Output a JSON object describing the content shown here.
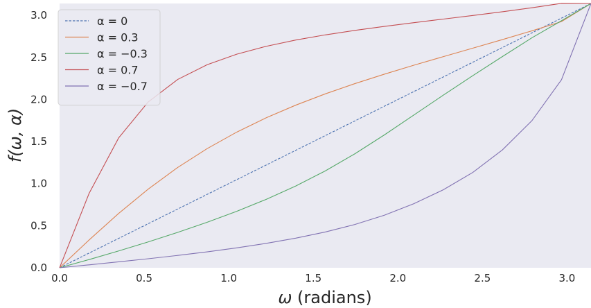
{
  "chart_data": {
    "type": "line",
    "xlabel": {
      "symbol": "ω",
      "unit": " (radians)"
    },
    "ylabel": "f(ω, α)",
    "xlim": [
      0,
      3.14159
    ],
    "ylim": [
      0,
      3.14159
    ],
    "x_ticks": [
      0.0,
      0.5,
      1.0,
      1.5,
      2.0,
      2.5,
      3.0
    ],
    "x_tick_labels": [
      "0.0",
      "0.5",
      "1.0",
      "1.5",
      "2.0",
      "2.5",
      "3.0"
    ],
    "y_ticks": [
      0.0,
      0.5,
      1.0,
      1.5,
      2.0,
      2.5,
      3.0
    ],
    "y_tick_labels": [
      "0.0",
      "0.5",
      "1.0",
      "1.5",
      "2.0",
      "2.5",
      "3.0"
    ],
    "grid": false,
    "legend_position": "top-left",
    "x": [
      0.0,
      0.1745,
      0.3491,
      0.5236,
      0.6981,
      0.8727,
      1.0472,
      1.2217,
      1.3963,
      1.5708,
      1.7453,
      1.9199,
      2.0944,
      2.2689,
      2.4435,
      2.618,
      2.7925,
      2.9671,
      3.1416
    ],
    "series": [
      {
        "name": "α = 0",
        "legend_label": "α = 0",
        "color": "#4c72b0",
        "dashed": true,
        "values": [
          0.0,
          0.1745,
          0.3491,
          0.5236,
          0.6981,
          0.8727,
          1.0472,
          1.2217,
          1.3963,
          1.5708,
          1.7453,
          1.9199,
          2.0944,
          2.2689,
          2.4435,
          2.618,
          2.7925,
          2.9671,
          3.1416
        ]
      },
      {
        "name": "α = 0.3",
        "legend_label": "α = 0.3",
        "color": "#dd8452",
        "dashed": false,
        "values": [
          0.0,
          0.3302,
          0.6455,
          0.9347,
          1.1921,
          1.4168,
          1.6124,
          1.7829,
          1.933,
          2.067,
          2.1887,
          2.3012,
          2.4075,
          2.51,
          2.6109,
          2.7123,
          2.8165,
          2.9258,
          3.1416
        ]
      },
      {
        "name": "α = −0.3",
        "legend_label": "α = −0.3",
        "color": "#55a868",
        "dashed": false,
        "values": [
          0.0,
          0.0975,
          0.1997,
          0.3071,
          0.4204,
          0.5411,
          0.6711,
          0.8135,
          0.9723,
          1.1514,
          1.3545,
          1.5791,
          1.8156,
          2.0523,
          2.2843,
          2.5109,
          2.7339,
          2.9368,
          3.1416
        ]
      },
      {
        "name": "α = 0.7",
        "legend_label": "α = 0.7",
        "color": "#c44e52",
        "dashed": false,
        "values": [
          0.0,
          0.8844,
          1.5435,
          1.9706,
          2.2381,
          2.4138,
          2.5385,
          2.6324,
          2.7069,
          2.7683,
          2.8214,
          2.869,
          2.9133,
          2.956,
          2.9987,
          3.043,
          3.0905,
          3.1435,
          3.1416
        ]
      },
      {
        "name": "α = −0.7",
        "legend_label": "α = −0.7",
        "color": "#8172b2",
        "dashed": false,
        "values": [
          0.0,
          0.0348,
          0.0704,
          0.1073,
          0.1466,
          0.1894,
          0.2367,
          0.2903,
          0.3522,
          0.4254,
          0.5143,
          0.6246,
          0.7614,
          0.9274,
          1.1341,
          1.4012,
          1.7488,
          2.2349,
          3.1416
        ]
      }
    ]
  }
}
